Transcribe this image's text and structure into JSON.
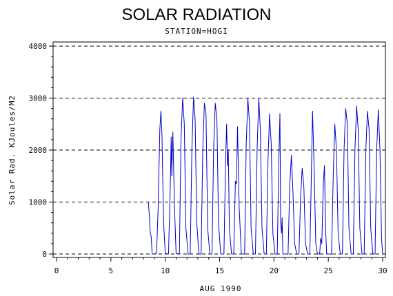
{
  "chart_data": {
    "type": "line",
    "title": "SOLAR RADIATION",
    "subtitle": "STATION=HOGI",
    "xlabel": "AUG 1990",
    "ylabel": "Solar Rad. KJoules/M2",
    "xlim": [
      0,
      30
    ],
    "ylim": [
      0,
      4000
    ],
    "x_ticks": [
      0,
      5,
      10,
      15,
      20,
      25,
      30
    ],
    "y_ticks": [
      0,
      1000,
      2000,
      3000,
      4000
    ],
    "grid": "horizontal dashed",
    "line_color": "#0000cc",
    "series": [
      {
        "values": [
          [
            8.45,
            1000
          ],
          [
            8.55,
            700
          ],
          [
            8.62,
            400
          ],
          [
            8.7,
            350
          ],
          [
            8.8,
            0
          ],
          [
            9.0,
            0
          ],
          [
            9.2,
            20
          ],
          [
            9.35,
            900
          ],
          [
            9.5,
            2400
          ],
          [
            9.6,
            2750
          ],
          [
            9.7,
            2300
          ],
          [
            9.85,
            600
          ],
          [
            10.0,
            10
          ],
          [
            10.3,
            0
          ],
          [
            10.45,
            1200
          ],
          [
            10.55,
            2250
          ],
          [
            10.6,
            1500
          ],
          [
            10.7,
            2350
          ],
          [
            10.85,
            900
          ],
          [
            11.0,
            10
          ],
          [
            11.3,
            0
          ],
          [
            11.45,
            2200
          ],
          [
            11.6,
            3000
          ],
          [
            11.75,
            2500
          ],
          [
            11.9,
            500
          ],
          [
            12.1,
            0
          ],
          [
            12.3,
            0
          ],
          [
            12.45,
            2000
          ],
          [
            12.6,
            3020
          ],
          [
            12.75,
            2600
          ],
          [
            12.9,
            600
          ],
          [
            13.1,
            0
          ],
          [
            13.3,
            0
          ],
          [
            13.45,
            2000
          ],
          [
            13.6,
            2900
          ],
          [
            13.75,
            2700
          ],
          [
            13.9,
            500
          ],
          [
            14.1,
            0
          ],
          [
            14.3,
            0
          ],
          [
            14.45,
            2000
          ],
          [
            14.6,
            2900
          ],
          [
            14.75,
            2600
          ],
          [
            14.9,
            600
          ],
          [
            15.1,
            0
          ],
          [
            15.4,
            0
          ],
          [
            15.55,
            1800
          ],
          [
            15.65,
            2500
          ],
          [
            15.72,
            1700
          ],
          [
            15.8,
            2000
          ],
          [
            15.9,
            500
          ],
          [
            16.1,
            0
          ],
          [
            16.3,
            0
          ],
          [
            16.45,
            1400
          ],
          [
            16.55,
            1350
          ],
          [
            16.65,
            2450
          ],
          [
            16.8,
            900
          ],
          [
            17.0,
            0
          ],
          [
            17.3,
            0
          ],
          [
            17.45,
            2100
          ],
          [
            17.6,
            3000
          ],
          [
            17.75,
            2500
          ],
          [
            17.9,
            500
          ],
          [
            18.1,
            0
          ],
          [
            18.3,
            0
          ],
          [
            18.45,
            2000
          ],
          [
            18.6,
            3000
          ],
          [
            18.75,
            2400
          ],
          [
            18.9,
            500
          ],
          [
            19.1,
            0
          ],
          [
            19.3,
            0
          ],
          [
            19.45,
            1800
          ],
          [
            19.6,
            2700
          ],
          [
            19.75,
            2100
          ],
          [
            19.9,
            400
          ],
          [
            20.1,
            0
          ],
          [
            20.3,
            0
          ],
          [
            20.45,
            1800
          ],
          [
            20.55,
            2700
          ],
          [
            20.62,
            600
          ],
          [
            20.7,
            400
          ],
          [
            20.75,
            700
          ],
          [
            20.82,
            0
          ],
          [
            21.0,
            0
          ],
          [
            21.3,
            0
          ],
          [
            21.45,
            1300
          ],
          [
            21.6,
            1900
          ],
          [
            21.75,
            1200
          ],
          [
            21.9,
            200
          ],
          [
            22.1,
            0
          ],
          [
            22.3,
            0
          ],
          [
            22.45,
            1100
          ],
          [
            22.6,
            1650
          ],
          [
            22.75,
            1300
          ],
          [
            22.9,
            200
          ],
          [
            23.1,
            0
          ],
          [
            23.3,
            0
          ],
          [
            23.45,
            1600
          ],
          [
            23.55,
            2750
          ],
          [
            23.7,
            1600
          ],
          [
            23.85,
            200
          ],
          [
            24.0,
            0
          ],
          [
            24.2,
            0
          ],
          [
            24.3,
            300
          ],
          [
            24.4,
            200
          ],
          [
            24.55,
            1400
          ],
          [
            24.65,
            1700
          ],
          [
            24.75,
            500
          ],
          [
            24.85,
            0
          ],
          [
            25.0,
            0
          ],
          [
            25.3,
            0
          ],
          [
            25.45,
            1500
          ],
          [
            25.6,
            2500
          ],
          [
            25.75,
            2000
          ],
          [
            25.9,
            400
          ],
          [
            26.1,
            0
          ],
          [
            26.3,
            0
          ],
          [
            26.45,
            2000
          ],
          [
            26.6,
            2800
          ],
          [
            26.75,
            2500
          ],
          [
            26.9,
            500
          ],
          [
            27.1,
            0
          ],
          [
            27.3,
            0
          ],
          [
            27.45,
            2000
          ],
          [
            27.6,
            2850
          ],
          [
            27.75,
            2400
          ],
          [
            27.9,
            500
          ],
          [
            28.1,
            0
          ],
          [
            28.3,
            0
          ],
          [
            28.45,
            2000
          ],
          [
            28.6,
            2750
          ],
          [
            28.75,
            2400
          ],
          [
            28.9,
            500
          ],
          [
            29.1,
            0
          ],
          [
            29.3,
            0
          ],
          [
            29.45,
            2000
          ],
          [
            29.6,
            2780
          ],
          [
            29.75,
            2000
          ],
          [
            29.9,
            300
          ],
          [
            30.0,
            0
          ]
        ]
      }
    ]
  }
}
